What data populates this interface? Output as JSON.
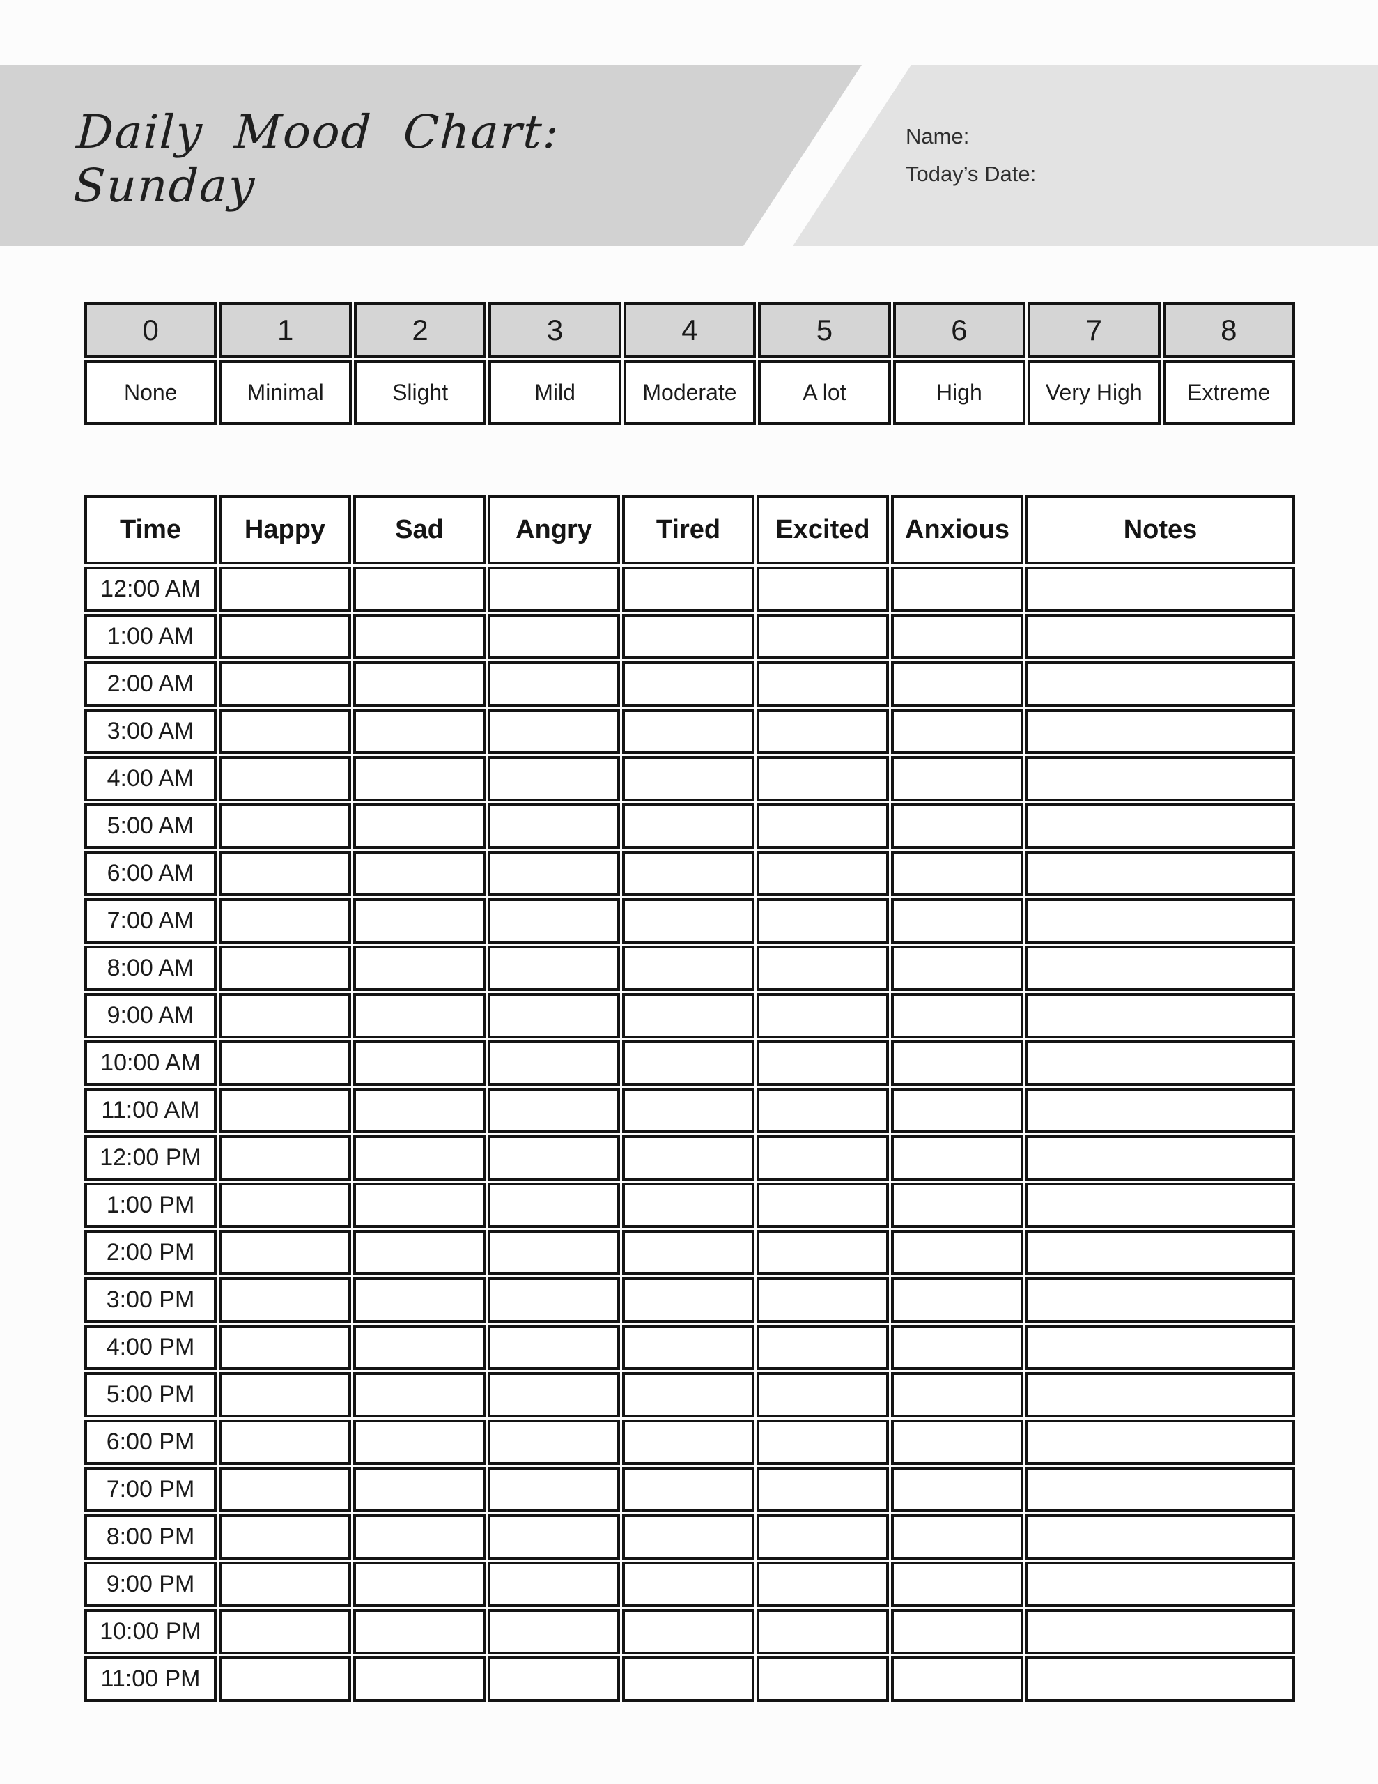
{
  "header": {
    "title_line1": "Daily Mood Chart:",
    "title_line2": "Sunday",
    "name_label": "Name:",
    "date_label": "Today’s Date:"
  },
  "scale": {
    "items": [
      {
        "value": "0",
        "label": "None"
      },
      {
        "value": "1",
        "label": "Minimal"
      },
      {
        "value": "2",
        "label": "Slight"
      },
      {
        "value": "3",
        "label": "Mild"
      },
      {
        "value": "4",
        "label": "Moderate"
      },
      {
        "value": "5",
        "label": "A lot"
      },
      {
        "value": "6",
        "label": "High"
      },
      {
        "value": "7",
        "label": "Very High"
      },
      {
        "value": "8",
        "label": "Extreme"
      }
    ]
  },
  "mood_table": {
    "columns": [
      "Time",
      "Happy",
      "Sad",
      "Angry",
      "Tired",
      "Excited",
      "Anxious",
      "Notes"
    ],
    "times": [
      "12:00 AM",
      "1:00 AM",
      "2:00 AM",
      "3:00 AM",
      "4:00 AM",
      "5:00 AM",
      "6:00 AM",
      "7:00 AM",
      "8:00 AM",
      "9:00 AM",
      "10:00 AM",
      "11:00 AM",
      "12:00 PM",
      "1:00 PM",
      "2:00 PM",
      "3:00 PM",
      "4:00 PM",
      "5:00 PM",
      "6:00 PM",
      "7:00 PM",
      "8:00 PM",
      "9:00 PM",
      "10:00 PM",
      "11:00 PM"
    ]
  },
  "colors": {
    "band_left_bg": "#d2d2d2",
    "band_right_bg": "#e3e3e3",
    "scale_value_bg": "#d5d5d5",
    "table_border": "#141414"
  }
}
